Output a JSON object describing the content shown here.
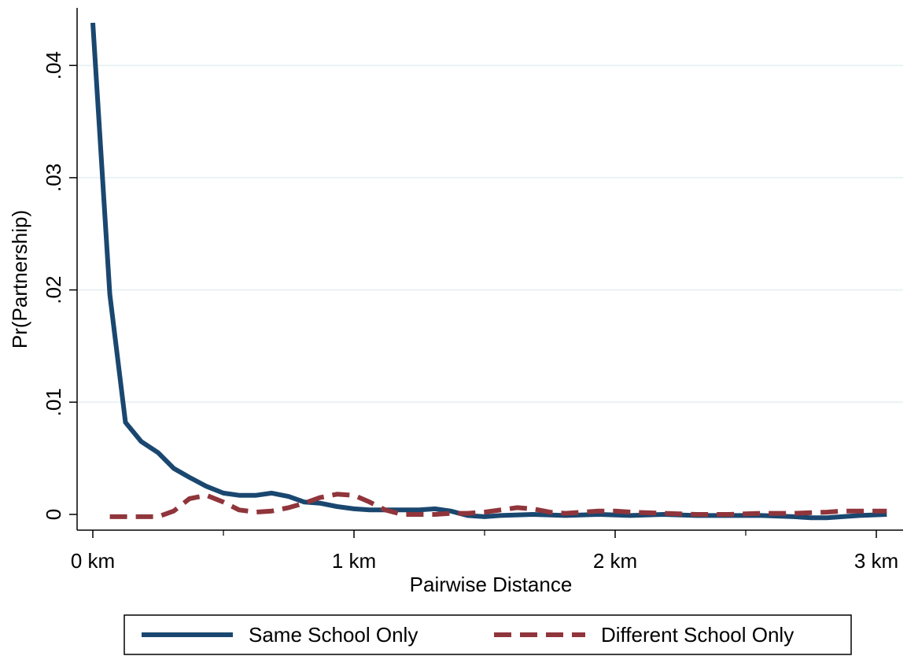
{
  "chart_data": {
    "type": "line",
    "title": "",
    "xlabel": "Pairwise Distance",
    "ylabel": "Pr(Partnership)",
    "xlim": [
      0,
      3.05
    ],
    "ylim": [
      0,
      0.044
    ],
    "x_ticks": [
      {
        "value": 0,
        "label": "0 km"
      },
      {
        "value": 1,
        "label": "1 km"
      },
      {
        "value": 2,
        "label": "2 km"
      },
      {
        "value": 3,
        "label": "3 km"
      }
    ],
    "x_minor_ticks": [
      0.5,
      1.5,
      2.5
    ],
    "y_ticks": [
      {
        "value": 0,
        "label": "0"
      },
      {
        "value": 0.01,
        "label": ".01"
      },
      {
        "value": 0.02,
        "label": ".02"
      },
      {
        "value": 0.03,
        "label": ".03"
      },
      {
        "value": 0.04,
        "label": ".04"
      }
    ],
    "grid": "horizontal",
    "legend_position": "bottom",
    "series": [
      {
        "name": "Same School Only",
        "color": "#1a476f",
        "dash": "solid",
        "points": [
          [
            0.0,
            0.0438
          ],
          [
            0.065,
            0.0196
          ],
          [
            0.125,
            0.0082
          ],
          [
            0.185,
            0.0065
          ],
          [
            0.25,
            0.0055
          ],
          [
            0.31,
            0.0041
          ],
          [
            0.37,
            0.0033
          ],
          [
            0.435,
            0.0025
          ],
          [
            0.5,
            0.0019
          ],
          [
            0.56,
            0.0017
          ],
          [
            0.625,
            0.0017
          ],
          [
            0.685,
            0.0019
          ],
          [
            0.75,
            0.0016
          ],
          [
            0.81,
            0.0011
          ],
          [
            0.87,
            0.001
          ],
          [
            0.935,
            0.0007
          ],
          [
            1.0,
            0.0005
          ],
          [
            1.06,
            0.0004
          ],
          [
            1.12,
            0.0004
          ],
          [
            1.185,
            0.0004
          ],
          [
            1.25,
            0.0004
          ],
          [
            1.31,
            0.0005
          ],
          [
            1.37,
            0.0003
          ],
          [
            1.435,
            -0.0001
          ],
          [
            1.5,
            -0.0002
          ],
          [
            1.56,
            -0.0001
          ],
          [
            1.685,
            0.0
          ],
          [
            1.81,
            -0.0001
          ],
          [
            1.935,
            0.0
          ],
          [
            2.06,
            -0.0001
          ],
          [
            2.185,
            0.0
          ],
          [
            2.31,
            -0.0001
          ],
          [
            2.435,
            -0.0001
          ],
          [
            2.56,
            -0.0001
          ],
          [
            2.685,
            -0.0002
          ],
          [
            2.75,
            -0.0003
          ],
          [
            2.81,
            -0.0003
          ],
          [
            2.935,
            -0.0001
          ],
          [
            3.04,
            0.0
          ]
        ]
      },
      {
        "name": "Different School Only",
        "color": "#90353b",
        "dash": "dashed",
        "points": [
          [
            0.065,
            -0.0002
          ],
          [
            0.125,
            -0.0002
          ],
          [
            0.185,
            -0.0002
          ],
          [
            0.25,
            -0.0002
          ],
          [
            0.31,
            0.0003
          ],
          [
            0.37,
            0.0014
          ],
          [
            0.435,
            0.0017
          ],
          [
            0.5,
            0.0011
          ],
          [
            0.56,
            0.0004
          ],
          [
            0.625,
            0.0002
          ],
          [
            0.685,
            0.0003
          ],
          [
            0.75,
            0.0006
          ],
          [
            0.81,
            0.001
          ],
          [
            0.87,
            0.0015
          ],
          [
            0.935,
            0.0018
          ],
          [
            1.0,
            0.0017
          ],
          [
            1.06,
            0.0011
          ],
          [
            1.12,
            0.0004
          ],
          [
            1.185,
            0.0
          ],
          [
            1.25,
            0.0
          ],
          [
            1.31,
            0.0
          ],
          [
            1.37,
            0.0001
          ],
          [
            1.435,
            0.0001
          ],
          [
            1.5,
            0.0002
          ],
          [
            1.56,
            0.0004
          ],
          [
            1.625,
            0.0006
          ],
          [
            1.685,
            0.0005
          ],
          [
            1.75,
            0.0002
          ],
          [
            1.81,
            0.0001
          ],
          [
            1.875,
            0.0002
          ],
          [
            1.935,
            0.0003
          ],
          [
            2.0,
            0.0003
          ],
          [
            2.06,
            0.0002
          ],
          [
            2.185,
            0.0001
          ],
          [
            2.31,
            0.0
          ],
          [
            2.435,
            0.0
          ],
          [
            2.56,
            0.0001
          ],
          [
            2.685,
            0.0001
          ],
          [
            2.81,
            0.0002
          ],
          [
            2.875,
            0.0003
          ],
          [
            2.935,
            0.0003
          ],
          [
            3.04,
            0.0003
          ]
        ]
      }
    ]
  }
}
